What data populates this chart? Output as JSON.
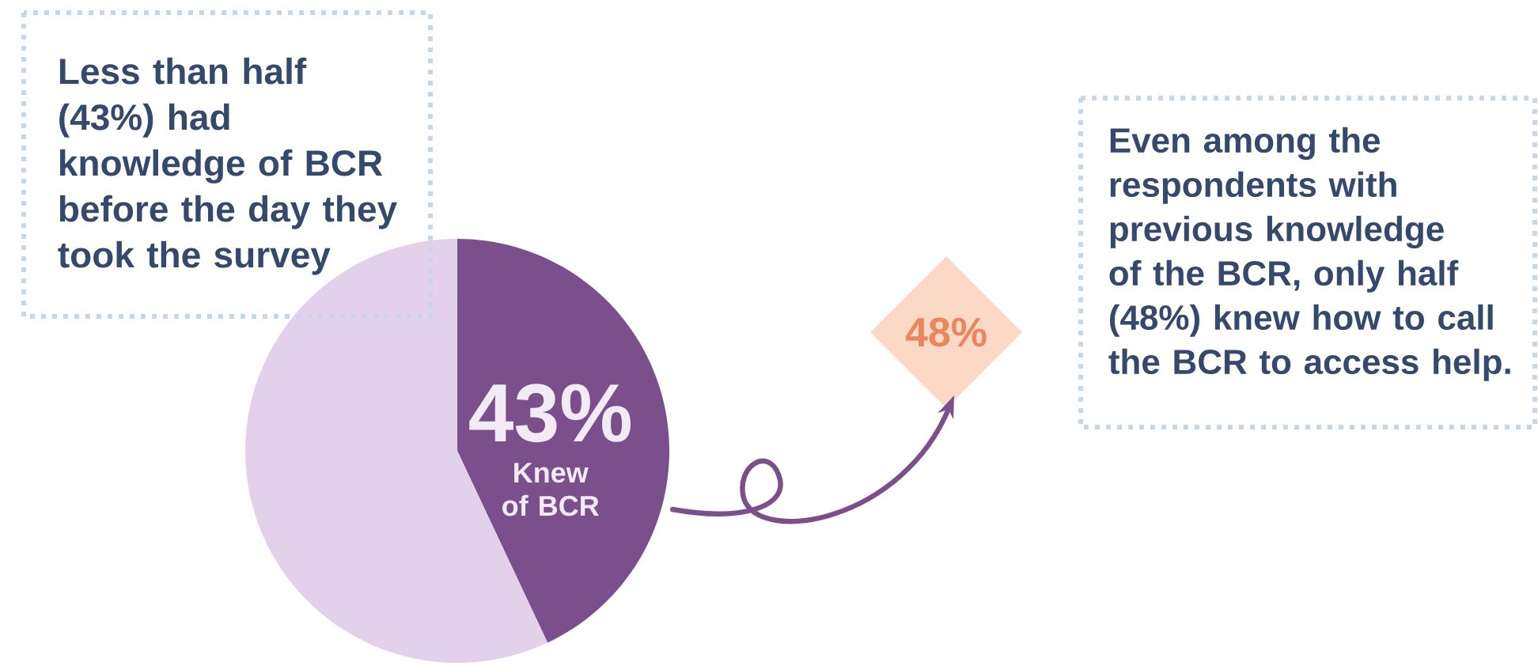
{
  "chart_data": {
    "type": "pie",
    "categories": [
      "Knew of BCR",
      null
    ],
    "values": [
      43,
      57
    ],
    "colors": [
      "#7b4f8c",
      "#e3d0ea"
    ],
    "value_labels": [
      "43%",
      null
    ],
    "annotations": [
      "Less than half (43%) had knowledge of BCR before the day they took the survey",
      "Even among the respondents with previous knowledge of the BCR, only half (48%) knew how to call the BCR to access help.",
      "48%"
    ]
  }
}
